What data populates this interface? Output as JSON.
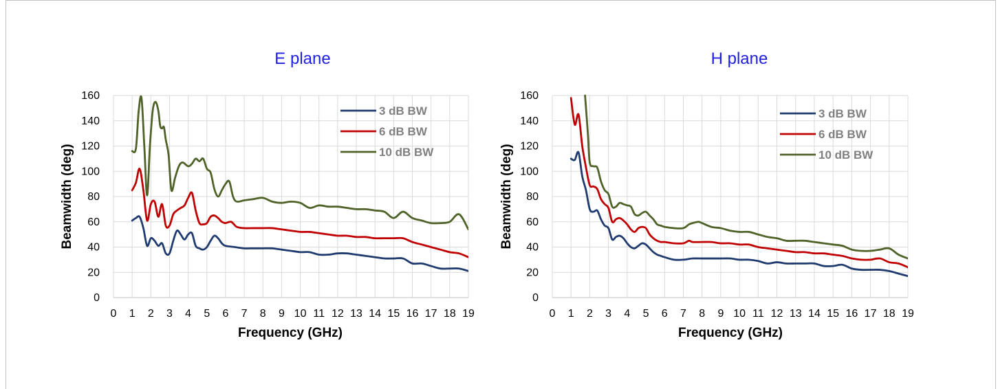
{
  "chart_data": [
    {
      "type": "line",
      "title": "E plane",
      "xlabel": "Frequency  (GHz)",
      "ylabel": "Beamwidth  (deg)",
      "xlim": [
        0,
        19
      ],
      "ylim": [
        0,
        160
      ],
      "xticks": [
        0,
        1,
        2,
        3,
        4,
        5,
        6,
        7,
        8,
        9,
        10,
        11,
        12,
        13,
        14,
        15,
        16,
        17,
        18,
        19
      ],
      "yticks": [
        0,
        20,
        40,
        60,
        80,
        100,
        120,
        140,
        160
      ],
      "grid": true,
      "legend_position": "top-right",
      "series": [
        {
          "name": "3 dB BW",
          "color": "#1f3a6e",
          "x": [
            1,
            1.2,
            1.4,
            1.6,
            1.8,
            2,
            2.2,
            2.4,
            2.6,
            2.8,
            3,
            3.2,
            3.4,
            3.6,
            3.8,
            4,
            4.2,
            4.4,
            4.6,
            4.8,
            5,
            5.2,
            5.4,
            5.6,
            5.8,
            6,
            6.5,
            7,
            7.5,
            8,
            8.5,
            9,
            9.5,
            10,
            10.5,
            11,
            11.5,
            12,
            12.5,
            13,
            13.5,
            14,
            14.5,
            15,
            15.5,
            16,
            16.5,
            17,
            17.5,
            18,
            18.5,
            19
          ],
          "y": [
            61,
            63,
            64,
            55,
            41,
            47,
            45,
            41,
            43,
            35,
            35,
            45,
            53,
            50,
            46,
            50,
            51,
            41,
            39,
            38,
            40,
            45,
            49,
            47,
            43,
            41,
            40,
            39,
            39,
            39,
            39,
            38,
            37,
            36,
            36,
            34,
            34,
            35,
            35,
            34,
            33,
            32,
            31,
            31,
            31,
            27,
            27,
            25,
            23,
            23,
            23,
            21
          ]
        },
        {
          "name": "6 dB BW",
          "color": "#c00000",
          "x": [
            1,
            1.2,
            1.4,
            1.6,
            1.8,
            2,
            2.2,
            2.4,
            2.6,
            2.8,
            3,
            3.2,
            3.4,
            3.6,
            3.8,
            4,
            4.2,
            4.4,
            4.6,
            4.8,
            5,
            5.2,
            5.4,
            5.6,
            5.8,
            6,
            6.3,
            6.6,
            7,
            7.5,
            8,
            8.5,
            9,
            9.5,
            10,
            10.5,
            11,
            11.5,
            12,
            12.5,
            13,
            13.5,
            14,
            14.5,
            15,
            15.5,
            16,
            16.5,
            17,
            17.5,
            18,
            18.5,
            19
          ],
          "y": [
            85,
            91,
            102,
            85,
            61,
            74,
            76,
            64,
            74,
            57,
            57,
            66,
            69,
            71,
            73,
            79,
            83,
            69,
            59,
            58,
            59,
            64,
            65,
            63,
            60,
            59,
            60,
            56,
            55,
            55,
            55,
            55,
            54,
            53,
            52,
            52,
            51,
            50,
            49,
            49,
            48,
            48,
            47,
            47,
            47,
            47,
            44,
            42,
            40,
            38,
            36,
            35,
            32
          ]
        },
        {
          "name": "10 dB BW",
          "color": "#4f6228",
          "x": [
            1,
            1.2,
            1.35,
            1.5,
            1.65,
            1.8,
            1.95,
            2.1,
            2.25,
            2.4,
            2.5,
            2.6,
            2.7,
            2.8,
            2.95,
            3.1,
            3.3,
            3.5,
            3.7,
            4,
            4.2,
            4.4,
            4.6,
            4.8,
            5,
            5.2,
            5.4,
            5.6,
            5.8,
            6,
            6.2,
            6.4,
            6.6,
            7,
            7.5,
            8,
            8.5,
            9,
            9.5,
            10,
            10.5,
            11,
            11.5,
            12,
            12.5,
            13,
            13.5,
            14,
            14.5,
            15,
            15.5,
            16,
            16.5,
            17,
            17.5,
            18,
            18.5,
            19
          ],
          "y": [
            116,
            118,
            148,
            158,
            120,
            81,
            120,
            148,
            155,
            148,
            136,
            134,
            135,
            125,
            113,
            85,
            95,
            104,
            107,
            104,
            106,
            110,
            108,
            110,
            102,
            99,
            86,
            80,
            85,
            90,
            92,
            80,
            76,
            77,
            78,
            79,
            76,
            75,
            76,
            75,
            71,
            73,
            72,
            72,
            71,
            70,
            70,
            69,
            68,
            63,
            68,
            63,
            61,
            59,
            59,
            60,
            66,
            54
          ]
        }
      ]
    },
    {
      "type": "line",
      "title": "H plane",
      "xlabel": "Frequency  (GHz)",
      "ylabel": "Beamwidth  (deg)",
      "xlim": [
        0,
        19
      ],
      "ylim": [
        0,
        160
      ],
      "xticks": [
        0,
        1,
        2,
        3,
        4,
        5,
        6,
        7,
        8,
        9,
        10,
        11,
        12,
        13,
        14,
        15,
        16,
        17,
        18,
        19
      ],
      "yticks": [
        0,
        20,
        40,
        60,
        80,
        100,
        120,
        140,
        160
      ],
      "grid": true,
      "legend_position": "top-right",
      "series": [
        {
          "name": "3 dB BW",
          "color": "#1f3a6e",
          "x": [
            1,
            1.2,
            1.4,
            1.6,
            1.8,
            2,
            2.2,
            2.4,
            2.6,
            2.8,
            3,
            3.2,
            3.4,
            3.6,
            3.8,
            4,
            4.2,
            4.4,
            4.6,
            4.8,
            5,
            5.2,
            5.4,
            5.6,
            5.8,
            6,
            6.5,
            7,
            7.5,
            8,
            8.5,
            9,
            9.5,
            10,
            10.5,
            11,
            11.5,
            12,
            12.5,
            13,
            13.5,
            14,
            14.5,
            15,
            15.5,
            16,
            16.5,
            17,
            17.5,
            18,
            18.5,
            19
          ],
          "y": [
            110,
            109,
            115,
            96,
            85,
            70,
            68,
            69,
            62,
            57,
            55,
            46,
            48,
            49,
            47,
            43,
            40,
            39,
            41,
            43,
            42,
            39,
            36,
            34,
            33,
            32,
            30,
            30,
            31,
            31,
            31,
            31,
            31,
            30,
            30,
            29,
            27,
            28,
            27,
            27,
            27,
            27,
            25,
            25,
            26,
            23,
            22,
            22,
            22,
            21,
            19,
            17
          ]
        },
        {
          "name": "6 dB BW",
          "color": "#c00000",
          "x": [
            1,
            1.2,
            1.4,
            1.6,
            1.8,
            2,
            2.2,
            2.4,
            2.6,
            2.8,
            3,
            3.2,
            3.4,
            3.6,
            3.8,
            4,
            4.2,
            4.4,
            4.6,
            4.8,
            5,
            5.2,
            5.4,
            5.6,
            5.8,
            6,
            6.5,
            7,
            7.3,
            7.5,
            8,
            8.5,
            9,
            9.5,
            10,
            10.5,
            11,
            11.5,
            12,
            12.5,
            13,
            13.5,
            14,
            14.5,
            15,
            15.5,
            16,
            16.5,
            17,
            17.5,
            18,
            18.5,
            19
          ],
          "y": [
            158,
            137,
            145,
            120,
            103,
            89,
            88,
            86,
            78,
            74,
            71,
            60,
            62,
            63,
            61,
            58,
            54,
            52,
            55,
            56,
            55,
            50,
            47,
            45,
            44,
            44,
            43,
            43,
            45,
            44,
            44,
            44,
            43,
            43,
            42,
            42,
            40,
            39,
            38,
            37,
            36,
            36,
            35,
            35,
            34,
            33,
            31,
            30,
            30,
            31,
            28,
            27,
            24
          ]
        },
        {
          "name": "10 dB BW",
          "color": "#4f6228",
          "x": [
            1.75,
            1.9,
            2,
            2.2,
            2.4,
            2.6,
            2.8,
            3,
            3.2,
            3.4,
            3.6,
            3.8,
            4,
            4.2,
            4.4,
            4.6,
            4.8,
            5,
            5.2,
            5.4,
            5.6,
            5.8,
            6,
            6.5,
            7,
            7.3,
            7.5,
            7.8,
            8,
            8.5,
            9,
            9.5,
            10,
            10.5,
            11,
            11.5,
            12,
            12.5,
            13,
            13.5,
            14,
            14.5,
            15,
            15.5,
            16,
            16.5,
            17,
            17.5,
            18,
            18.5,
            19
          ],
          "y": [
            160,
            130,
            107,
            104,
            103,
            92,
            85,
            82,
            72,
            72,
            75,
            74,
            73,
            72,
            66,
            65,
            67,
            68,
            65,
            62,
            58,
            57,
            56,
            55,
            55,
            58,
            59,
            60,
            59,
            56,
            55,
            53,
            52,
            52,
            50,
            48,
            47,
            45,
            45,
            45,
            44,
            43,
            42,
            41,
            38,
            37,
            37,
            38,
            39,
            34,
            31
          ]
        }
      ]
    }
  ]
}
